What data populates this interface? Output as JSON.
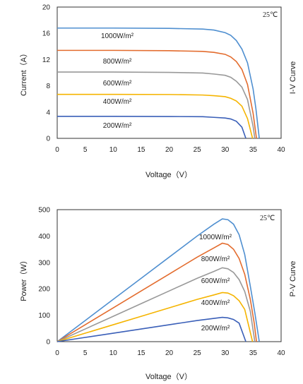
{
  "chart_data": [
    {
      "type": "line",
      "title": "",
      "side_label": "I-V Curve",
      "xlabel": "Voltage（V）",
      "ylabel": "Current（A）",
      "xlim": [
        0,
        40
      ],
      "ylim": [
        0,
        20
      ],
      "xticks": [
        "0",
        "5",
        "10",
        "15",
        "20",
        "25",
        "30",
        "35",
        "40"
      ],
      "yticks": [
        "0",
        "4",
        "8",
        "12",
        "16",
        "20"
      ],
      "annotation": "25℃",
      "grid": false,
      "series": [
        {
          "name": "1000W/m²",
          "color": "#4f8fd0",
          "x": [
            0,
            10,
            20,
            26,
            28,
            30,
            31,
            32,
            33,
            34,
            35,
            35.5,
            36.1
          ],
          "y": [
            16.8,
            16.8,
            16.75,
            16.65,
            16.5,
            16.1,
            15.7,
            14.9,
            13.6,
            11.5,
            7.5,
            4.5,
            0
          ]
        },
        {
          "name": "800W/m²",
          "color": "#e36c2e",
          "x": [
            0,
            10,
            20,
            26,
            28,
            30,
            31,
            32,
            33,
            34,
            35,
            35.6
          ],
          "y": [
            13.4,
            13.4,
            13.35,
            13.25,
            13.1,
            12.8,
            12.4,
            11.7,
            10.5,
            8.2,
            3.8,
            0
          ]
        },
        {
          "name": "600W/m²",
          "color": "#999999",
          "x": [
            0,
            10,
            20,
            26,
            28,
            30,
            31,
            32,
            33,
            34,
            35,
            35.3
          ],
          "y": [
            10.1,
            10.1,
            10.05,
            9.95,
            9.8,
            9.6,
            9.3,
            8.7,
            7.8,
            5.9,
            1.8,
            0
          ]
        },
        {
          "name": "400W/m²",
          "color": "#f5b400",
          "x": [
            0,
            10,
            20,
            26,
            28,
            30,
            31,
            32,
            33,
            34,
            34.9
          ],
          "y": [
            6.7,
            6.7,
            6.68,
            6.6,
            6.5,
            6.35,
            6.1,
            5.7,
            4.9,
            3.0,
            0
          ]
        },
        {
          "name": "200W/m²",
          "color": "#3a5fb8",
          "x": [
            0,
            10,
            20,
            26,
            28,
            30,
            31,
            32,
            33,
            33.7
          ],
          "y": [
            3.35,
            3.35,
            3.33,
            3.3,
            3.2,
            3.1,
            2.95,
            2.6,
            1.7,
            0
          ]
        }
      ]
    },
    {
      "type": "line",
      "title": "",
      "side_label": "P-V Curve",
      "xlabel": "Voltage（V）",
      "ylabel": "Power（W）",
      "xlim": [
        0,
        40
      ],
      "ylim": [
        0,
        500
      ],
      "xticks": [
        "0",
        "5",
        "10",
        "15",
        "20",
        "25",
        "30",
        "35",
        "40"
      ],
      "yticks": [
        "0",
        "100",
        "200",
        "300",
        "400",
        "500"
      ],
      "annotation": "25℃",
      "grid": false,
      "series": [
        {
          "name": "1000W/m²",
          "color": "#4f8fd0",
          "x": [
            0,
            5,
            10,
            15,
            20,
            25,
            28,
            29.5,
            30.5,
            31.5,
            32.5,
            33.5,
            34.5,
            35.3,
            36.1
          ],
          "y": [
            0,
            80,
            160,
            240,
            320,
            400,
            445,
            465,
            462,
            445,
            405,
            330,
            210,
            110,
            0
          ]
        },
        {
          "name": "800W/m²",
          "color": "#e36c2e",
          "x": [
            0,
            5,
            10,
            15,
            20,
            25,
            28,
            29.5,
            30.5,
            31.5,
            32.5,
            33.5,
            34.5,
            35.2,
            35.6
          ],
          "y": [
            0,
            64,
            128,
            192,
            256,
            320,
            355,
            373,
            368,
            350,
            315,
            255,
            160,
            70,
            0
          ]
        },
        {
          "name": "600W/m²",
          "color": "#999999",
          "x": [
            0,
            5,
            10,
            15,
            20,
            25,
            28,
            29.5,
            30.5,
            31.5,
            32.5,
            33.5,
            34.5,
            35.3
          ],
          "y": [
            0,
            48,
            96,
            144,
            192,
            240,
            266,
            280,
            276,
            262,
            235,
            190,
            115,
            0
          ]
        },
        {
          "name": "400W/m²",
          "color": "#f5b400",
          "x": [
            0,
            5,
            10,
            15,
            20,
            25,
            28,
            29.5,
            30.5,
            31.5,
            32.5,
            33.5,
            34.9
          ],
          "y": [
            0,
            32,
            64,
            96,
            128,
            160,
            177,
            186,
            184,
            174,
            155,
            122,
            0
          ]
        },
        {
          "name": "200W/m²",
          "color": "#3a5fb8",
          "x": [
            0,
            5,
            10,
            15,
            20,
            25,
            28,
            29.5,
            30.5,
            31.5,
            32.5,
            33.7
          ],
          "y": [
            0,
            16,
            32,
            48,
            64,
            80,
            88,
            92,
            90,
            84,
            70,
            0
          ]
        }
      ]
    }
  ]
}
